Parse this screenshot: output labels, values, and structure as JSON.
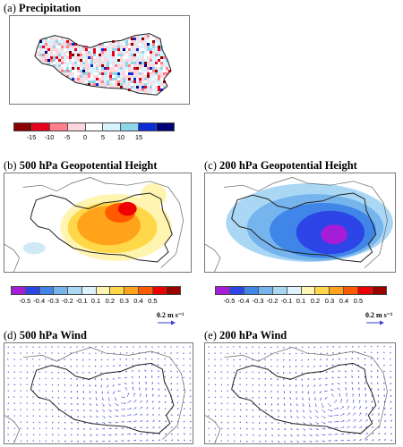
{
  "chart_data": [
    {
      "type": "heatmap",
      "panel_label": "(a)",
      "title": "Precipitation",
      "colorbar": {
        "colors": [
          "#8b0000",
          "#e8001c",
          "#ff7f8a",
          "#ffd6dc",
          "#ffffff",
          "#d6f4ff",
          "#8fd6ea",
          "#0a2bd6",
          "#00007a"
        ],
        "tick_labels": [
          "-15",
          "-10",
          "-5",
          "0",
          "5",
          "10",
          "15"
        ]
      }
    },
    {
      "type": "heatmap",
      "panel_label": "(b)",
      "title": "500 hPa Geopotential Height",
      "colorbar": {
        "colors": [
          "#a51dd6",
          "#2d45e6",
          "#3f86e8",
          "#76b4ee",
          "#aad8f4",
          "#dff1fb",
          "#fff5b0",
          "#ffd84a",
          "#ffa31a",
          "#ff5a00",
          "#ee0000",
          "#9a0000"
        ],
        "tick_labels": [
          "-0.5",
          "-0.4",
          "-0.3",
          "-0.2",
          "-0.1",
          "0.1",
          "0.2",
          "0.3",
          "0.4",
          "0.5"
        ]
      }
    },
    {
      "type": "heatmap",
      "panel_label": "(c)",
      "title": "200 hPa Geopotential Height",
      "colorbar": {
        "colors": [
          "#a51dd6",
          "#2d45e6",
          "#3f86e8",
          "#76b4ee",
          "#aad8f4",
          "#dff1fb",
          "#fff5b0",
          "#ffd84a",
          "#ffa31a",
          "#ff5a00",
          "#ee0000",
          "#9a0000"
        ],
        "tick_labels": [
          "-0.5",
          "-0.4",
          "-0.3",
          "-0.2",
          "-0.1",
          "0.1",
          "0.2",
          "0.3",
          "0.4",
          "0.5"
        ]
      }
    },
    {
      "type": "scatter",
      "panel_label": "(d)",
      "title": "500 hPa Wind",
      "reference_vector": "0.2 m s⁻¹",
      "vector_color": "#3b3bd6"
    },
    {
      "type": "scatter",
      "panel_label": "(e)",
      "title": "200 hPa Wind",
      "reference_vector": "0.2 m s⁻¹",
      "vector_color": "#3b3bd6"
    }
  ]
}
